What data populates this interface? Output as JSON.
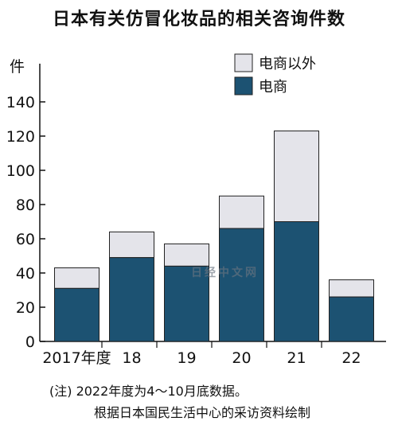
{
  "chart_data": {
    "type": "bar",
    "stacked": true,
    "title": "日本有关仿冒化妆品的相关咨询件数",
    "ylabel": "件",
    "xlabel": "",
    "ylim": [
      0,
      150
    ],
    "yticks": [
      0,
      20,
      40,
      60,
      80,
      100,
      120,
      140
    ],
    "categories": [
      "2017年度",
      "18",
      "19",
      "20",
      "21",
      "22"
    ],
    "series": [
      {
        "name": "电商",
        "color": "#1c5272",
        "values": [
          31,
          49,
          44,
          66,
          70,
          26
        ]
      },
      {
        "name": "电商以外",
        "color": "#e4e4ea",
        "values": [
          12,
          15,
          13,
          19,
          53,
          10
        ]
      }
    ],
    "legend_position": "top-right",
    "grid": false
  },
  "notes": {
    "line1": "(注) 2022年度为4～10月底数据。",
    "line2": "根据日本国民生活中心的采访资料绘制"
  },
  "watermark": "日经中文网"
}
